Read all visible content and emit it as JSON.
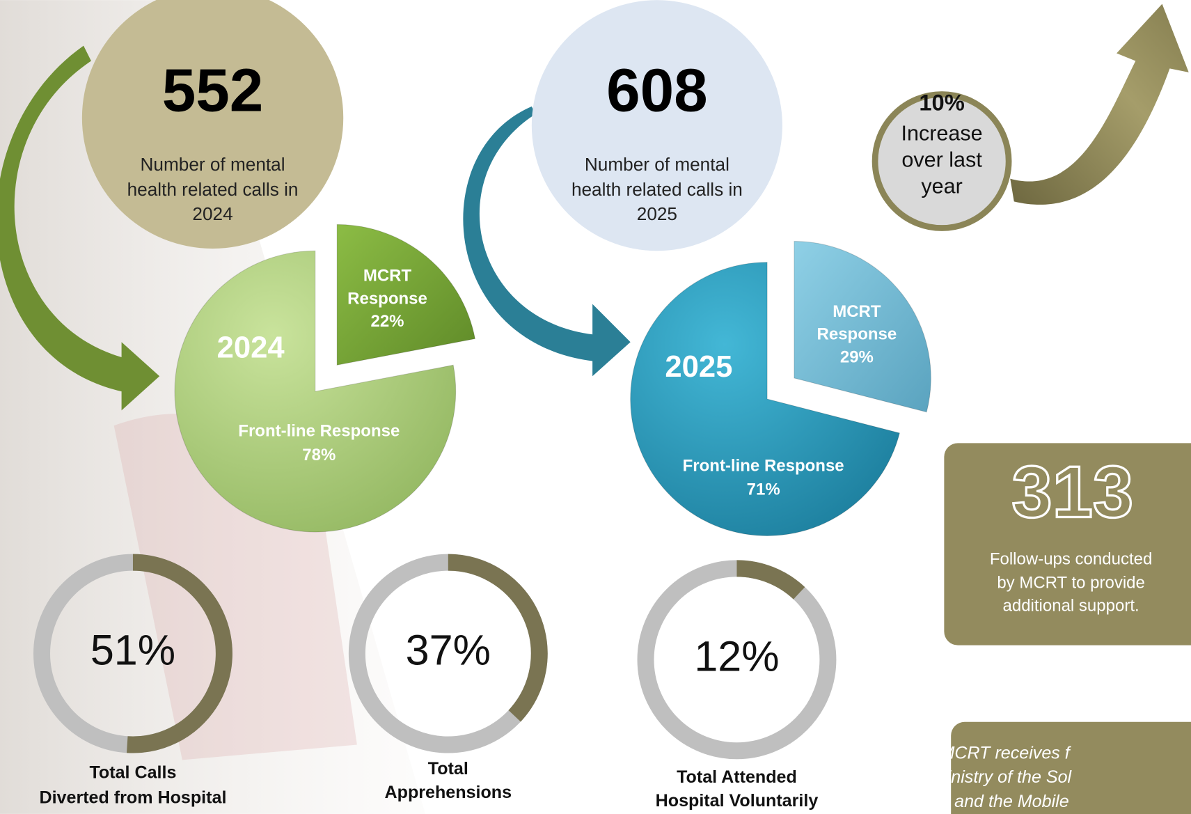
{
  "year_stats": [
    {
      "value": 552,
      "description": [
        "Number of mental",
        "health related calls in",
        "2024"
      ]
    },
    {
      "value": 608,
      "description": [
        "Number of mental",
        "health related calls in",
        "2025"
      ]
    }
  ],
  "pies": [
    {
      "year": "2024",
      "slices": [
        {
          "label": [
            "MCRT",
            "Response"
          ],
          "value": 22,
          "value_label": "22%"
        },
        {
          "label": [
            "Front-line Response"
          ],
          "value": 78,
          "value_label": "78%"
        }
      ]
    },
    {
      "year": "2025",
      "slices": [
        {
          "label": [
            "MCRT",
            "Response"
          ],
          "value": 29,
          "value_label": "29%"
        },
        {
          "label": [
            "Front-line Response"
          ],
          "value": 71,
          "value_label": "71%"
        }
      ]
    }
  ],
  "increase": {
    "value": "10%",
    "text": [
      "Increase",
      "over last",
      "year"
    ]
  },
  "follow_ups": {
    "value": 313,
    "text": [
      "Follow-ups conducted",
      "by MCRT to provide",
      "additional support."
    ]
  },
  "donuts": [
    {
      "value": 51,
      "value_label": "51%",
      "label": [
        "Total Calls",
        "Diverted from Hospital"
      ]
    },
    {
      "value": 37,
      "value_label": "37%",
      "label": [
        "Total",
        "Apprehensions"
      ]
    },
    {
      "value": 12,
      "value_label": "12%",
      "label": [
        "Total Attended",
        "Hospital Voluntarily"
      ]
    }
  ],
  "note": {
    "lines": [
      "The MCRT receives f",
      "the Ministry of the Sol",
      "Grant and the Mobile"
    ]
  }
}
